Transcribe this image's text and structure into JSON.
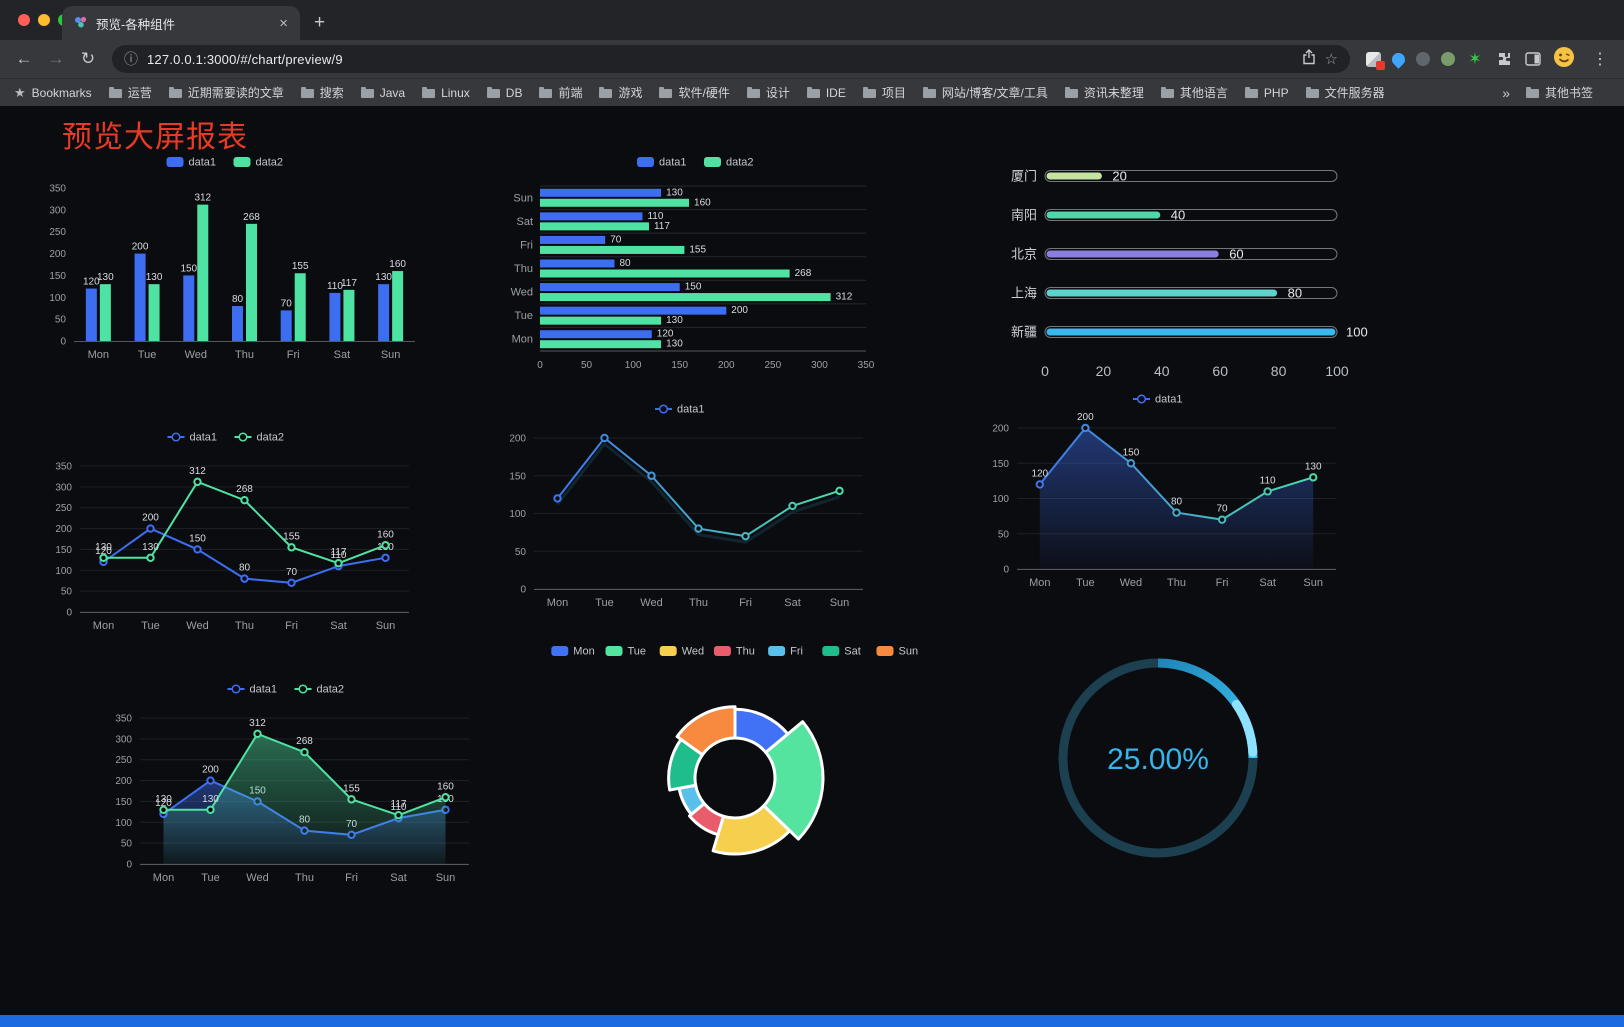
{
  "browser": {
    "tab_title": "预览-各种组件",
    "tab_close": "×",
    "new_tab": "+",
    "back_icon": "←",
    "forward_icon": "→",
    "reload_icon": "↻",
    "info_icon": "ⓘ",
    "star_icon": "☆",
    "menu_icon": "⋮",
    "url": "127.0.0.1:3000/#/chart/preview/9",
    "bookmarks_label": "Bookmarks",
    "overflow_chevron": "»",
    "other_bookmarks": "其他书签"
  },
  "bookmarks": {
    "items": [
      "运营",
      "近期需要读的文章",
      "搜索",
      "Java",
      "Linux",
      "DB",
      "前端",
      "游戏",
      "软件/硬件",
      "设计",
      "IDE",
      "项目",
      "网站/博客/文章/工具",
      "资讯未整理",
      "其他语言",
      "PHP",
      "文件服务器"
    ]
  },
  "page": {
    "title": "预览大屏报表",
    "title_color": "#e73a27",
    "background": "#0b0c0f",
    "footer_color": "#1a6be0"
  },
  "palette": {
    "data1_blue": "#3d6ef2",
    "data2_green": "#4fe3a3",
    "axis_label": "#9aa0a6",
    "value_label": "#d8dce2"
  },
  "chart_data": [
    {
      "type": "bar",
      "categories": [
        "Mon",
        "Tue",
        "Wed",
        "Thu",
        "Fri",
        "Sat",
        "Sun"
      ],
      "series": [
        {
          "name": "data1",
          "color": "#3d6ef2",
          "values": [
            120,
            200,
            150,
            80,
            70,
            110,
            130
          ]
        },
        {
          "name": "data2",
          "color": "#4fe3a3",
          "values": [
            130,
            130,
            312,
            268,
            155,
            117,
            160
          ]
        }
      ],
      "ylim": [
        0,
        350
      ],
      "yticks": [
        0,
        50,
        100,
        150,
        200,
        250,
        300,
        350
      ],
      "legend_position": "top",
      "labels": true
    },
    {
      "type": "hbar",
      "categories": [
        "Mon",
        "Tue",
        "Wed",
        "Thu",
        "Fri",
        "Sat",
        "Sun"
      ],
      "series": [
        {
          "name": "data1",
          "color": "#3d6ef2",
          "values": [
            120,
            200,
            150,
            80,
            70,
            110,
            130
          ]
        },
        {
          "name": "data2",
          "color": "#4fe3a3",
          "values": [
            130,
            130,
            312,
            268,
            155,
            117,
            160
          ]
        }
      ],
      "xlim": [
        0,
        350
      ],
      "xticks": [
        0,
        50,
        100,
        150,
        200,
        250,
        300,
        350
      ],
      "legend_position": "top",
      "labels": true
    },
    {
      "type": "capsule",
      "categories": [
        "厦门",
        "南阳",
        "北京",
        "上海",
        "新疆"
      ],
      "values": [
        20,
        40,
        60,
        80,
        100
      ],
      "colors": [
        "#c6e3a2",
        "#4fd6a9",
        "#8a7fe0",
        "#5bd2cc",
        "#3ab7ec"
      ],
      "xlim": [
        0,
        100
      ],
      "xticks": [
        0,
        20,
        40,
        60,
        80,
        100
      ]
    },
    {
      "type": "line",
      "categories": [
        "Mon",
        "Tue",
        "Wed",
        "Thu",
        "Fri",
        "Sat",
        "Sun"
      ],
      "series": [
        {
          "name": "data1",
          "color": "#3d6ef2",
          "values": [
            120,
            200,
            150,
            80,
            70,
            110,
            130
          ]
        },
        {
          "name": "data2",
          "color": "#4fe3a3",
          "values": [
            130,
            130,
            312,
            268,
            155,
            117,
            160
          ]
        }
      ],
      "ylim": [
        0,
        350
      ],
      "yticks": [
        0,
        50,
        100,
        150,
        200,
        250,
        300,
        350
      ],
      "legend_position": "top",
      "labels": true
    },
    {
      "type": "line",
      "categories": [
        "Mon",
        "Tue",
        "Wed",
        "Thu",
        "Fri",
        "Sat",
        "Sun"
      ],
      "series": [
        {
          "name": "data1",
          "color": "#3d6ef2",
          "gradient": [
            "#3d6ef2",
            "#4fe3a3"
          ],
          "shadow": true,
          "values": [
            120,
            200,
            150,
            80,
            70,
            110,
            130
          ]
        }
      ],
      "ylim": [
        0,
        200
      ],
      "yticks": [
        0,
        50,
        100,
        150,
        200
      ],
      "legend_position": "top",
      "labels": false
    },
    {
      "type": "line",
      "categories": [
        "Mon",
        "Tue",
        "Wed",
        "Thu",
        "Fri",
        "Sat",
        "Sun"
      ],
      "series": [
        {
          "name": "data1",
          "color": "#3d6ef2",
          "gradient": [
            "#3d6ef2",
            "#4fe3a3"
          ],
          "area": true,
          "values": [
            120,
            200,
            150,
            80,
            70,
            110,
            130
          ]
        }
      ],
      "ylim": [
        0,
        200
      ],
      "yticks": [
        0,
        50,
        100,
        150,
        200
      ],
      "legend_position": "top",
      "labels": true
    },
    {
      "type": "line",
      "categories": [
        "Mon",
        "Tue",
        "Wed",
        "Thu",
        "Fri",
        "Sat",
        "Sun"
      ],
      "series": [
        {
          "name": "data1",
          "color": "#3d6ef2",
          "area": true,
          "values": [
            120,
            200,
            150,
            80,
            70,
            110,
            130
          ]
        },
        {
          "name": "data2",
          "color": "#4fe3a3",
          "area": true,
          "values": [
            130,
            130,
            312,
            268,
            155,
            117,
            160
          ]
        }
      ],
      "ylim": [
        0,
        350
      ],
      "yticks": [
        0,
        50,
        100,
        150,
        200,
        250,
        300,
        350
      ],
      "legend_position": "top",
      "labels": true
    },
    {
      "type": "rose",
      "categories": [
        "Mon",
        "Tue",
        "Wed",
        "Thu",
        "Fri",
        "Sat",
        "Sun"
      ],
      "values": [
        120,
        200,
        150,
        80,
        70,
        110,
        130
      ],
      "colors": [
        "#4171f5",
        "#55e3a0",
        "#f6cf4f",
        "#e95c6b",
        "#58c0ea",
        "#1fbd8c",
        "#f78a3e"
      ],
      "legend_position": "top"
    },
    {
      "type": "gauge",
      "value": 25,
      "label": "25.00%",
      "color": "#35b5ea",
      "track": "#1c4050",
      "arc": [
        "#1f86b8",
        "#3ec6f5"
      ],
      "highlight": "#8ee2ff"
    }
  ]
}
